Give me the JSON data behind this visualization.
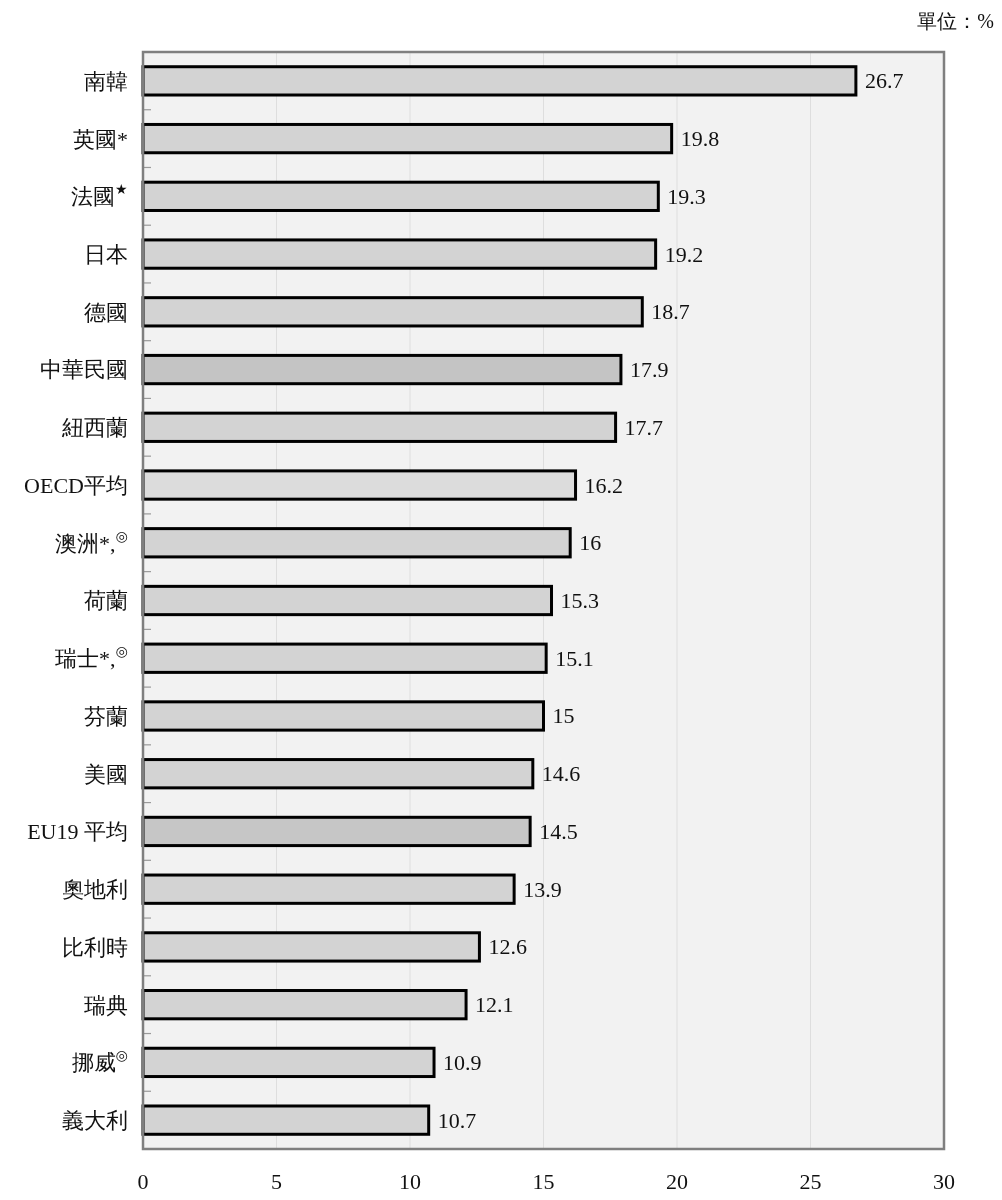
{
  "chart_data": {
    "type": "bar",
    "orientation": "horizontal",
    "categories": [
      "南韓",
      "英國*",
      "法國$^{★}$",
      "日本",
      "德國",
      "中華民國",
      "紐西蘭",
      "OECD平均",
      "澳洲*,$^{◎}$",
      "荷蘭",
      "瑞士*,$^{◎}$",
      "芬蘭",
      "美國",
      "EU19 平均",
      "奧地利",
      "比利時",
      "瑞典",
      "挪威$^{◎}$",
      "義大利"
    ],
    "values": [
      26.7,
      19.8,
      19.3,
      19.2,
      18.7,
      17.9,
      17.7,
      16.2,
      16,
      15.3,
      15.1,
      15,
      14.6,
      14.5,
      13.9,
      12.6,
      12.1,
      10.9,
      10.7
    ],
    "colors": [
      "#d3d3d3",
      "#d3d3d3",
      "#d3d3d3",
      "#d3d3d3",
      "#d3d3d3",
      "#c4c4c4",
      "#d3d3d3",
      "#dcdcdc",
      "#d3d3d3",
      "#d3d3d3",
      "#d3d3d3",
      "#d3d3d3",
      "#d3d3d3",
      "#c6c6c6",
      "#d3d3d3",
      "#d3d3d3",
      "#d3d3d3",
      "#d3d3d3",
      "#d3d3d3"
    ],
    "xlim": [
      0,
      30
    ],
    "xticks": [
      0,
      5,
      10,
      15,
      20,
      25,
      30
    ],
    "grid": "x",
    "data_labels": true,
    "annotations": [
      "單位：%"
    ]
  }
}
